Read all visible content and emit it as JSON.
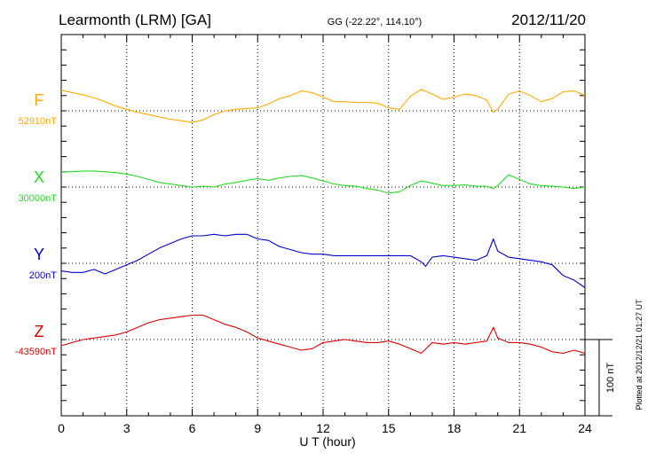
{
  "header": {
    "station": "Learmonth (LRM)  [GA]",
    "coords": "GG (-22.22°, 114.10°)",
    "date": "2012/11/20"
  },
  "side_note": "Plotted at 2012/12/21 01:27 UT",
  "scale_label": "100 nT",
  "chart_data": {
    "type": "line",
    "xlabel": "U T (hour)",
    "xlim": [
      0,
      24
    ],
    "x_ticks": [
      "0",
      "3",
      "6",
      "9",
      "12",
      "15",
      "18",
      "21",
      "24"
    ],
    "grid": true,
    "scale_bar_nT": 100,
    "series": [
      {
        "name": "F",
        "baseline": "52910nT",
        "color": "#ffaa00",
        "x": [
          0,
          0.5,
          1,
          1.5,
          2,
          2.5,
          3,
          3.5,
          4,
          4.5,
          5,
          5.5,
          6,
          6.5,
          7,
          7.5,
          8,
          8.5,
          9,
          9.5,
          10,
          10.5,
          11,
          11.5,
          12,
          12.5,
          13,
          13.5,
          14,
          14.5,
          15,
          15.5,
          16,
          16.5,
          17,
          17.5,
          18,
          18.5,
          19,
          19.5,
          19.8,
          20,
          20.5,
          21,
          21.5,
          22,
          22.5,
          23,
          23.5,
          24
        ],
        "values": [
          27,
          24,
          21,
          17,
          12,
          6,
          2,
          -2,
          -5,
          -8,
          -11,
          -13,
          -15,
          -12,
          -5,
          0,
          2,
          3,
          4,
          9,
          16,
          20,
          26,
          24,
          18,
          12,
          12,
          11,
          11,
          10,
          4,
          2,
          19,
          28,
          22,
          15,
          18,
          22,
          20,
          14,
          -2,
          2,
          22,
          26,
          20,
          12,
          16,
          25,
          26,
          20
        ]
      },
      {
        "name": "X",
        "baseline": "30000nT",
        "color": "#22dd22",
        "x": [
          0,
          0.5,
          1,
          1.5,
          2,
          2.5,
          3,
          3.5,
          4,
          4.5,
          5,
          5.5,
          6,
          6.5,
          7,
          7.5,
          8,
          8.5,
          9,
          9.5,
          10,
          10.5,
          11,
          11.5,
          12,
          12.5,
          13,
          13.5,
          14,
          14.5,
          15,
          15.5,
          16,
          16.5,
          17,
          17.5,
          18,
          18.5,
          19,
          19.5,
          19.8,
          20,
          20.5,
          21,
          21.5,
          22,
          22.5,
          23,
          23.5,
          24
        ],
        "values": [
          20,
          20,
          21,
          21,
          20,
          19,
          17,
          14,
          10,
          6,
          4,
          2,
          0,
          1,
          0,
          4,
          6,
          9,
          11,
          9,
          12,
          14,
          15,
          12,
          8,
          4,
          2,
          1,
          -2,
          -4,
          -8,
          -6,
          2,
          8,
          5,
          2,
          2,
          3,
          1,
          1,
          -2,
          2,
          16,
          10,
          4,
          2,
          1,
          0,
          -2,
          0
        ]
      },
      {
        "name": "Y",
        "baseline": "200nT",
        "color": "#0000cc",
        "x": [
          0,
          0.5,
          1,
          1.5,
          2,
          2.5,
          3,
          3.5,
          4,
          4.5,
          5,
          5.5,
          6,
          6.5,
          7,
          7.5,
          8,
          8.5,
          9,
          9.5,
          10,
          10.5,
          11,
          11.5,
          12,
          12.5,
          13,
          13.5,
          14,
          14.5,
          15,
          15.5,
          16,
          16.5,
          16.7,
          17,
          17.5,
          18,
          18.5,
          19,
          19.5,
          19.8,
          20,
          20.5,
          21,
          21.5,
          22,
          22.5,
          23,
          23.5,
          24
        ],
        "values": [
          -10,
          -12,
          -12,
          -8,
          -14,
          -8,
          -2,
          4,
          12,
          20,
          26,
          32,
          36,
          36,
          38,
          36,
          38,
          38,
          32,
          30,
          22,
          18,
          14,
          12,
          12,
          10,
          10,
          10,
          10,
          10,
          10,
          10,
          10,
          2,
          -4,
          8,
          10,
          8,
          6,
          4,
          10,
          32,
          16,
          8,
          6,
          4,
          2,
          -2,
          -16,
          -22,
          -32
        ]
      },
      {
        "name": "Z",
        "baseline": "-43590nT",
        "color": "#dd0000",
        "x": [
          0,
          0.5,
          1,
          1.5,
          2,
          2.5,
          3,
          3.5,
          4,
          4.5,
          5,
          5.5,
          6,
          6.5,
          7,
          7.5,
          8,
          8.5,
          9,
          9.5,
          10,
          10.5,
          11,
          11.5,
          12,
          12.5,
          13,
          13.5,
          14,
          14.5,
          15,
          15.5,
          16,
          16.5,
          17,
          17.5,
          18,
          18.5,
          19,
          19.5,
          19.8,
          20,
          20.5,
          21,
          21.5,
          22,
          22.5,
          23,
          23.5,
          24
        ],
        "values": [
          -8,
          -4,
          0,
          2,
          4,
          6,
          10,
          16,
          22,
          26,
          28,
          30,
          32,
          32,
          26,
          20,
          16,
          10,
          2,
          -2,
          -6,
          -10,
          -14,
          -12,
          -4,
          -2,
          0,
          -2,
          -4,
          -4,
          -2,
          -6,
          -12,
          -18,
          -4,
          -6,
          -4,
          -6,
          -4,
          -2,
          16,
          2,
          -4,
          -4,
          -6,
          -10,
          -16,
          -18,
          -14,
          -18
        ]
      }
    ]
  }
}
